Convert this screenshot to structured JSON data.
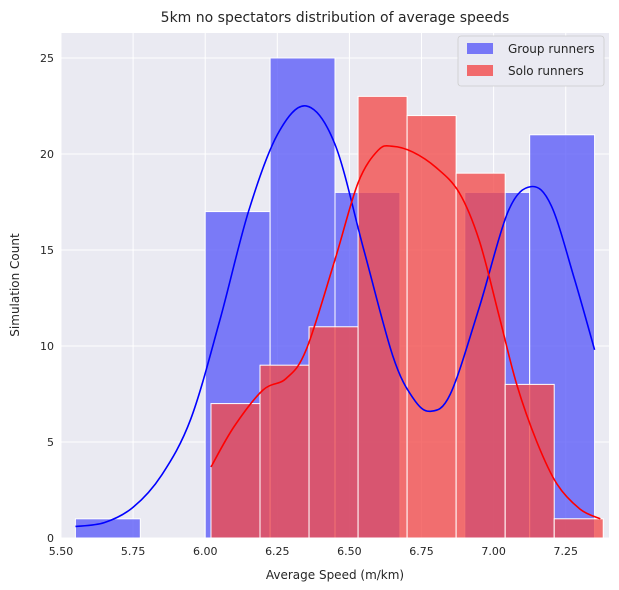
{
  "chart_data": {
    "type": "bar",
    "subtype": "histogram-with-kde",
    "title": "5km no spectators distribution of average speeds",
    "xlabel": "Average Speed (m/km)",
    "ylabel": "Simulation Count",
    "xlim": [
      5.5,
      7.4
    ],
    "ylim": [
      0,
      26.3
    ],
    "xticks": [
      5.5,
      5.75,
      6.0,
      6.25,
      6.5,
      6.75,
      7.0,
      7.25
    ],
    "xtick_labels": [
      "5.50",
      "5.75",
      "6.00",
      "6.25",
      "6.50",
      "6.75",
      "7.00",
      "7.25"
    ],
    "yticks": [
      0,
      5,
      10,
      15,
      20,
      25
    ],
    "ytick_labels": [
      "0",
      "5",
      "10",
      "15",
      "20",
      "25"
    ],
    "grid": true,
    "legend_position": "top-right",
    "colors": {
      "background": "#eaeaf2",
      "grid": "#ffffff",
      "group_fill": "#5a5af8",
      "group_line": "#0000ff",
      "solo_fill": "#f24a4a",
      "solo_line": "#ff0000"
    },
    "series": [
      {
        "name": "Group runners",
        "bins": [
          {
            "x0": 5.55,
            "x1": 5.775,
            "count": 1
          },
          {
            "x0": 5.775,
            "x1": 6.0,
            "count": 0
          },
          {
            "x0": 6.0,
            "x1": 6.225,
            "count": 17
          },
          {
            "x0": 6.225,
            "x1": 6.45,
            "count": 25
          },
          {
            "x0": 6.45,
            "x1": 6.675,
            "count": 18
          },
          {
            "x0": 6.675,
            "x1": 6.9,
            "count": 0
          },
          {
            "x0": 6.9,
            "x1": 7.125,
            "count": 18
          },
          {
            "x0": 7.125,
            "x1": 7.35,
            "count": 21
          }
        ],
        "kde": [
          [
            5.55,
            0.6
          ],
          [
            5.65,
            0.8
          ],
          [
            5.75,
            1.6
          ],
          [
            5.85,
            3.3
          ],
          [
            5.95,
            6.2
          ],
          [
            6.05,
            11.3
          ],
          [
            6.15,
            17.0
          ],
          [
            6.25,
            21.0
          ],
          [
            6.35,
            22.5
          ],
          [
            6.45,
            20.5
          ],
          [
            6.55,
            15.0
          ],
          [
            6.65,
            9.5
          ],
          [
            6.72,
            7.3
          ],
          [
            6.78,
            6.6
          ],
          [
            6.85,
            7.5
          ],
          [
            6.95,
            12.0
          ],
          [
            7.05,
            17.0
          ],
          [
            7.13,
            18.3
          ],
          [
            7.2,
            17.3
          ],
          [
            7.28,
            13.5
          ],
          [
            7.35,
            9.8
          ]
        ]
      },
      {
        "name": "Solo runners",
        "bins": [
          {
            "x0": 6.02,
            "x1": 6.19,
            "count": 7
          },
          {
            "x0": 6.19,
            "x1": 6.36,
            "count": 9
          },
          {
            "x0": 6.36,
            "x1": 6.53,
            "count": 11
          },
          {
            "x0": 6.53,
            "x1": 6.7,
            "count": 23
          },
          {
            "x0": 6.7,
            "x1": 6.87,
            "count": 22
          },
          {
            "x0": 6.87,
            "x1": 7.04,
            "count": 19
          },
          {
            "x0": 7.04,
            "x1": 7.21,
            "count": 8
          },
          {
            "x0": 7.21,
            "x1": 7.38,
            "count": 1
          }
        ],
        "kde": [
          [
            6.02,
            3.7
          ],
          [
            6.1,
            5.8
          ],
          [
            6.2,
            7.7
          ],
          [
            6.28,
            8.3
          ],
          [
            6.35,
            9.8
          ],
          [
            6.45,
            14.5
          ],
          [
            6.53,
            18.5
          ],
          [
            6.6,
            20.2
          ],
          [
            6.65,
            20.4
          ],
          [
            6.72,
            20.1
          ],
          [
            6.8,
            19.3
          ],
          [
            6.88,
            18.0
          ],
          [
            6.95,
            15.5
          ],
          [
            7.02,
            11.5
          ],
          [
            7.08,
            8.0
          ],
          [
            7.15,
            5.0
          ],
          [
            7.22,
            2.8
          ],
          [
            7.3,
            1.5
          ],
          [
            7.37,
            1.0
          ]
        ]
      }
    ]
  }
}
